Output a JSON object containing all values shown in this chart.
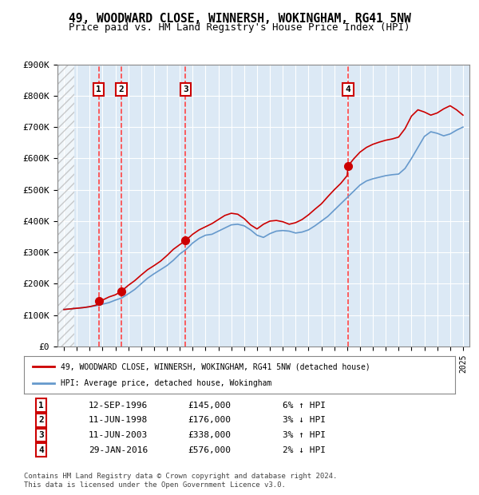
{
  "title": "49, WOODWARD CLOSE, WINNERSH, WOKINGHAM, RG41 5NW",
  "subtitle": "Price paid vs. HM Land Registry's House Price Index (HPI)",
  "title_fontsize": 11,
  "subtitle_fontsize": 9.5,
  "background_color": "#ffffff",
  "plot_bg_color": "#dce9f5",
  "hatch_color": "#c0c0c0",
  "ylim": [
    0,
    900000
  ],
  "yticks": [
    0,
    100000,
    200000,
    300000,
    400000,
    500000,
    600000,
    700000,
    800000,
    900000
  ],
  "ytick_labels": [
    "£0",
    "£100K",
    "£200K",
    "£300K",
    "£400K",
    "£500K",
    "£600K",
    "£700K",
    "£800K",
    "£900K"
  ],
  "xlim_start": 1993.5,
  "xlim_end": 2025.5,
  "sale_dates": [
    1996.7,
    1998.45,
    2003.45,
    2016.08
  ],
  "sale_prices": [
    145000,
    176000,
    338000,
    576000
  ],
  "sale_labels": [
    "1",
    "2",
    "3",
    "4"
  ],
  "sale_label_dates": [
    1996.7,
    1998.45,
    2003.45,
    2016.08
  ],
  "red_line_color": "#cc0000",
  "blue_line_color": "#6699cc",
  "marker_color": "#cc0000",
  "dashed_line_color": "#ff4444",
  "legend_line1": "49, WOODWARD CLOSE, WINNERSH, WOKINGHAM, RG41 5NW (detached house)",
  "legend_line2": "HPI: Average price, detached house, Wokingham",
  "table_rows": [
    [
      "1",
      "12-SEP-1996",
      "£145,000",
      "6% ↑ HPI"
    ],
    [
      "2",
      "11-JUN-1998",
      "£176,000",
      "3% ↓ HPI"
    ],
    [
      "3",
      "11-JUN-2003",
      "£338,000",
      "3% ↑ HPI"
    ],
    [
      "4",
      "29-JAN-2016",
      "£576,000",
      "2% ↓ HPI"
    ]
  ],
  "footer_text": "Contains HM Land Registry data © Crown copyright and database right 2024.\nThis data is licensed under the Open Government Licence v3.0.",
  "hpi_years": [
    1994,
    1994.5,
    1995,
    1995.5,
    1996,
    1996.5,
    1997,
    1997.5,
    1998,
    1998.5,
    1999,
    1999.5,
    2000,
    2000.5,
    2001,
    2001.5,
    2002,
    2002.5,
    2003,
    2003.5,
    2004,
    2004.5,
    2005,
    2005.5,
    2006,
    2006.5,
    2007,
    2007.5,
    2008,
    2008.5,
    2009,
    2009.5,
    2010,
    2010.5,
    2011,
    2011.5,
    2012,
    2012.5,
    2013,
    2013.5,
    2014,
    2014.5,
    2015,
    2015.5,
    2016,
    2016.5,
    2017,
    2017.5,
    2018,
    2018.5,
    2019,
    2019.5,
    2020,
    2020.5,
    2021,
    2021.5,
    2022,
    2022.5,
    2023,
    2023.5,
    2024,
    2024.5,
    2025
  ],
  "hpi_values": [
    118000,
    120000,
    122000,
    124000,
    127000,
    130000,
    135000,
    140000,
    148000,
    155000,
    168000,
    182000,
    200000,
    218000,
    232000,
    245000,
    258000,
    275000,
    295000,
    310000,
    330000,
    345000,
    355000,
    358000,
    368000,
    378000,
    388000,
    390000,
    385000,
    372000,
    355000,
    348000,
    360000,
    368000,
    370000,
    368000,
    362000,
    365000,
    372000,
    385000,
    400000,
    415000,
    435000,
    455000,
    475000,
    495000,
    515000,
    528000,
    535000,
    540000,
    545000,
    548000,
    550000,
    568000,
    600000,
    635000,
    670000,
    685000,
    680000,
    672000,
    678000,
    690000,
    700000
  ],
  "red_years": [
    1994,
    1994.5,
    1995,
    1995.5,
    1996,
    1996.5,
    1996.7,
    1997,
    1997.5,
    1998,
    1998.45,
    1999,
    1999.5,
    2000,
    2000.5,
    2001,
    2001.5,
    2002,
    2002.5,
    2003,
    2003.45,
    2004,
    2004.5,
    2005,
    2005.5,
    2006,
    2006.5,
    2007,
    2007.5,
    2008,
    2008.5,
    2009,
    2009.5,
    2010,
    2010.5,
    2011,
    2011.5,
    2012,
    2012.5,
    2013,
    2013.5,
    2014,
    2014.5,
    2015,
    2015.5,
    2016,
    2016.08,
    2016.5,
    2017,
    2017.5,
    2018,
    2018.5,
    2019,
    2019.5,
    2020,
    2020.5,
    2021,
    2021.5,
    2022,
    2022.5,
    2023,
    2023.5,
    2024,
    2024.5,
    2025
  ],
  "red_values": [
    118000,
    120000,
    122000,
    124000,
    127000,
    132000,
    145000,
    148000,
    158000,
    165000,
    176000,
    195000,
    210000,
    228000,
    245000,
    258000,
    272000,
    290000,
    310000,
    325000,
    338000,
    358000,
    372000,
    382000,
    392000,
    405000,
    418000,
    425000,
    422000,
    408000,
    388000,
    375000,
    390000,
    400000,
    402000,
    398000,
    390000,
    395000,
    405000,
    420000,
    438000,
    455000,
    478000,
    500000,
    520000,
    545000,
    576000,
    598000,
    620000,
    635000,
    645000,
    652000,
    658000,
    662000,
    668000,
    695000,
    735000,
    755000,
    748000,
    738000,
    745000,
    758000,
    768000,
    755000,
    738000
  ]
}
